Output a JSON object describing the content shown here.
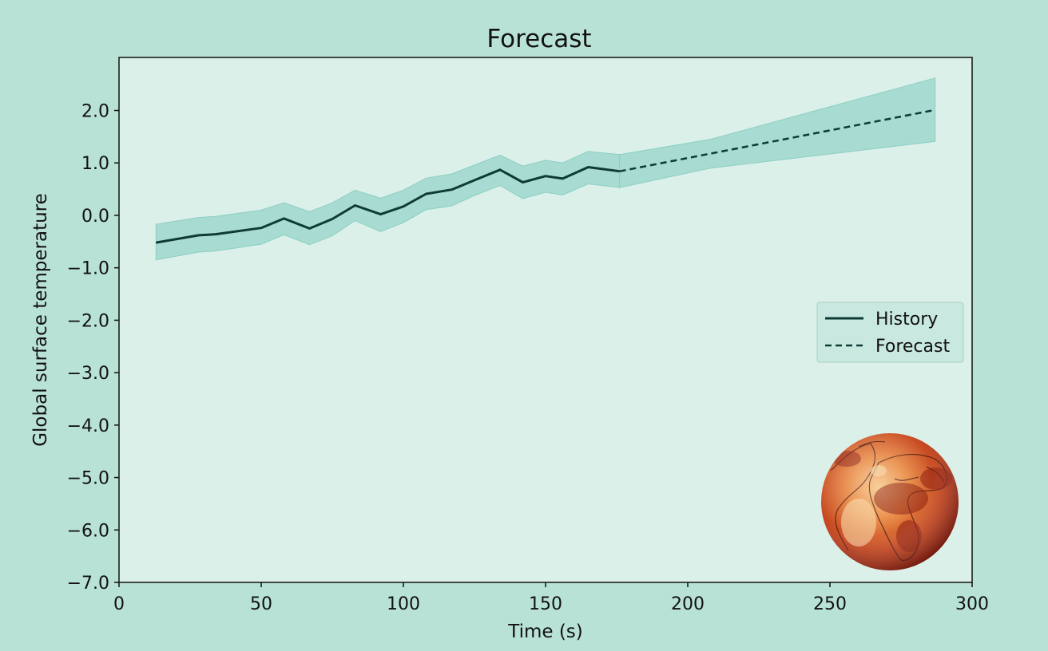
{
  "chart_data": {
    "type": "line",
    "title": "Forecast",
    "xlabel": "Time (s)",
    "ylabel": "Global surface temperature",
    "xlim": [
      0,
      300
    ],
    "ylim": [
      -7.0,
      2.0
    ],
    "xticks": [
      0,
      50,
      100,
      150,
      200,
      250,
      300
    ],
    "yticks": [
      -7.0,
      -6.0,
      -5.0,
      -4.0,
      -3.0,
      -2.0,
      -1.0,
      0.0,
      1.0,
      2.0
    ],
    "xtick_labels": [
      "0",
      "50",
      "100",
      "150",
      "200",
      "250",
      "300"
    ],
    "ytick_labels": [
      "−7.0",
      "−6.0",
      "−5.0",
      "−4.0",
      "−3.0",
      "−2.0",
      "−1.0",
      "0.0",
      "1.0",
      "2.0"
    ],
    "grid": false,
    "legend_position": "center-right",
    "series": [
      {
        "name": "History",
        "style": "solid",
        "color": "#0f3b37",
        "x": [
          13,
          28,
          34,
          50,
          58,
          67,
          75,
          83,
          92,
          100,
          108,
          117,
          125,
          134,
          142,
          150,
          156,
          165,
          176
        ],
        "y": [
          -0.52,
          -0.38,
          -0.36,
          -0.24,
          -0.06,
          -0.25,
          -0.07,
          0.19,
          0.02,
          0.17,
          0.41,
          0.49,
          0.67,
          0.87,
          0.63,
          0.75,
          0.7,
          0.92,
          0.84
        ],
        "band_upper": [
          -0.17,
          -0.04,
          -0.02,
          0.1,
          0.24,
          0.07,
          0.24,
          0.48,
          0.33,
          0.48,
          0.71,
          0.79,
          0.96,
          1.15,
          0.94,
          1.05,
          1.0,
          1.22,
          1.16
        ],
        "band_lower": [
          -0.85,
          -0.7,
          -0.68,
          -0.55,
          -0.37,
          -0.56,
          -0.39,
          -0.1,
          -0.31,
          -0.14,
          0.11,
          0.18,
          0.38,
          0.57,
          0.32,
          0.44,
          0.39,
          0.6,
          0.53
        ]
      },
      {
        "name": "Forecast",
        "style": "dashed",
        "color": "#0f3b37",
        "x": [
          176,
          287
        ],
        "y": [
          0.84,
          2.01
        ],
        "band_x": [
          176,
          208,
          287
        ],
        "band_upper": [
          1.16,
          1.45,
          2.62
        ],
        "band_lower": [
          0.53,
          0.9,
          1.41
        ]
      }
    ],
    "colors": {
      "background": "#b9e2d6",
      "plot_area": "#dcf0ea",
      "band": "#9fd7cd",
      "line": "#0f3b37"
    },
    "inset_image": "earth-globe-temperature-map"
  }
}
